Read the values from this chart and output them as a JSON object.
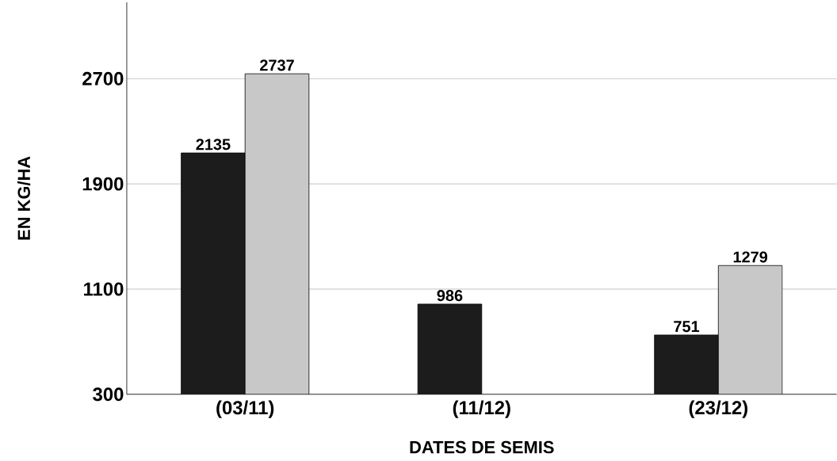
{
  "chart_data": {
    "type": "bar",
    "xlabel": "DATES DE SEMIS",
    "ylabel": "EN KG/HA",
    "categories": [
      "(03/11)",
      "(11/12)",
      "(23/12)"
    ],
    "series": [
      {
        "color": "#1c1c1c",
        "values": [
          2135,
          986,
          751
        ]
      },
      {
        "color": "#c8c8c8",
        "values": [
          2737,
          null,
          1279
        ]
      }
    ],
    "ylim": [
      300,
      3280
    ],
    "yticks": [
      300,
      1100,
      1900,
      2700
    ],
    "grid": "y",
    "data_labels": true
  }
}
